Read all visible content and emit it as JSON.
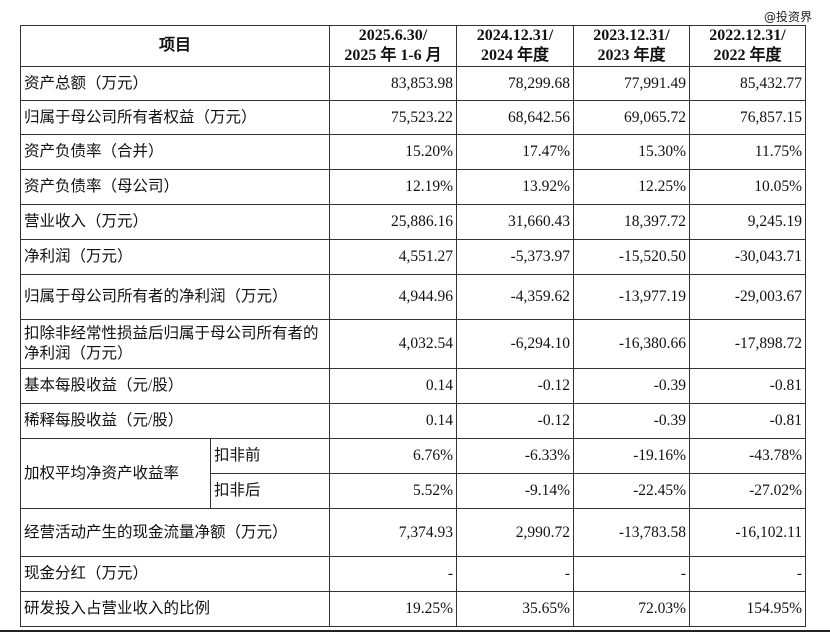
{
  "watermark": "@投资界",
  "header": {
    "item": "项目",
    "cols": [
      [
        "2025.6.30/",
        "2025 年 1-6 月"
      ],
      [
        "2024.12.31/",
        "2024 年度"
      ],
      [
        "2023.12.31/",
        "2023 年度"
      ],
      [
        "2022.12.31/",
        "2022 年度"
      ]
    ]
  },
  "rows": [
    {
      "label": "资产总额（万元）",
      "values": [
        "83,853.98",
        "78,299.68",
        "77,991.49",
        "85,432.77"
      ]
    },
    {
      "label": "归属于母公司所有者权益（万元）",
      "values": [
        "75,523.22",
        "68,642.56",
        "69,065.72",
        "76,857.15"
      ]
    },
    {
      "label": "资产负债率（合并）",
      "values": [
        "15.20%",
        "17.47%",
        "15.30%",
        "11.75%"
      ]
    },
    {
      "label": "资产负债率（母公司）",
      "values": [
        "12.19%",
        "13.92%",
        "12.25%",
        "10.05%"
      ]
    },
    {
      "label": "营业收入（万元）",
      "values": [
        "25,886.16",
        "31,660.43",
        "18,397.72",
        "9,245.19"
      ]
    },
    {
      "label": "净利润（万元）",
      "values": [
        "4,551.27",
        "-5,373.97",
        "-15,520.50",
        "-30,043.71"
      ]
    },
    {
      "label": "归属于母公司所有者的净利润（万元）",
      "values": [
        "4,944.96",
        "-4,359.62",
        "-13,977.19",
        "-29,003.67"
      ]
    },
    {
      "label": "扣除非经常性损益后归属于母公司所有者的净利润（万元）",
      "values": [
        "4,032.54",
        "-6,294.10",
        "-16,380.66",
        "-17,898.72"
      ]
    },
    {
      "label": "基本每股收益（元/股）",
      "values": [
        "0.14",
        "-0.12",
        "-0.39",
        "-0.81"
      ]
    },
    {
      "label": "稀释每股收益（元/股）",
      "values": [
        "0.14",
        "-0.12",
        "-0.39",
        "-0.81"
      ]
    }
  ],
  "roe": {
    "label": "加权平均净资产收益率",
    "sub": [
      {
        "label": "扣非前",
        "values": [
          "6.76%",
          "-6.33%",
          "-19.16%",
          "-43.78%"
        ]
      },
      {
        "label": "扣非后",
        "values": [
          "5.52%",
          "-9.14%",
          "-22.45%",
          "-27.02%"
        ]
      }
    ]
  },
  "rows2": [
    {
      "label": "经营活动产生的现金流量净额（万元）",
      "values": [
        "7,374.93",
        "2,990.72",
        "-13,783.58",
        "-16,102.11"
      ]
    },
    {
      "label": "现金分红（万元）",
      "values": [
        "-",
        "-",
        "-",
        "-"
      ]
    },
    {
      "label": "研发投入占营业收入的比例",
      "values": [
        "19.25%",
        "35.65%",
        "72.03%",
        "154.95%"
      ]
    }
  ]
}
